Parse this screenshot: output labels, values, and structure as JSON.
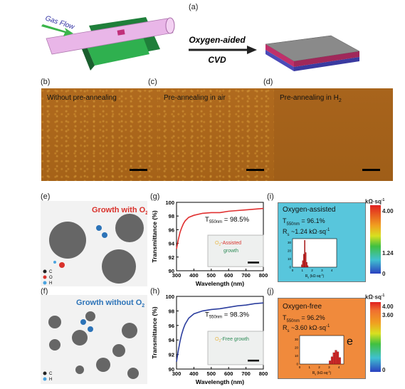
{
  "panels": {
    "a": "(a)",
    "b": "(b)",
    "c": "(c)",
    "d": "(d)",
    "e": "(e)",
    "f": "(f)",
    "g": "(g)",
    "h": "(h)",
    "i": "(i)",
    "j": "(j)"
  },
  "schematic": {
    "gas_flow": "Gas Flow",
    "arrow_top": "Oxygen-aided",
    "arrow_bottom": "CVD"
  },
  "afm": {
    "b_label": "Without pre-annealing",
    "c_label": "Pre-annealing  in air",
    "d_label_main": "Pre-annealing in H",
    "d_label_sub": "2"
  },
  "growth": {
    "e_title_main": "Growth with O",
    "e_title_sub": "2",
    "f_title_main": "Growth without O",
    "f_title_sub": "2",
    "legend_e": [
      "C",
      "O",
      "H"
    ],
    "legend_f": [
      "C",
      "H"
    ],
    "colors": {
      "C": "#222222",
      "O": "#d9312b",
      "H": "#4aa3df"
    }
  },
  "chart_data": [
    {
      "type": "line",
      "panel": "g",
      "xlabel": "Wavelength (nm)",
      "ylabel": "Transmittance (%)",
      "xlim": [
        300,
        800
      ],
      "ylim": [
        90,
        100
      ],
      "xticks": [
        300,
        400,
        500,
        600,
        700,
        800
      ],
      "yticks": [
        90,
        92,
        94,
        96,
        98,
        100
      ],
      "annotation_main": "T",
      "annotation_sub": "550nm",
      "annotation_val": " = 98.5%",
      "inset_text": [
        "O",
        "2",
        "-Assisted",
        "growth"
      ],
      "series": [
        {
          "color": "#e03030",
          "x": [
            300,
            310,
            320,
            330,
            340,
            350,
            370,
            400,
            450,
            500,
            550,
            600,
            650,
            700,
            750,
            800
          ],
          "y": [
            93.2,
            94.5,
            95.6,
            96.3,
            96.9,
            97.3,
            97.8,
            98.1,
            98.4,
            98.5,
            98.5,
            98.7,
            98.8,
            98.9,
            99.0,
            99.1
          ]
        }
      ]
    },
    {
      "type": "line",
      "panel": "h",
      "xlabel": "Wavelength (nm)",
      "ylabel": "Transmittance (%)",
      "xlim": [
        300,
        800
      ],
      "ylim": [
        90,
        100
      ],
      "xticks": [
        300,
        400,
        500,
        600,
        700,
        800
      ],
      "yticks": [
        90,
        92,
        94,
        96,
        98,
        100
      ],
      "annotation_main": "T",
      "annotation_sub": "550nm",
      "annotation_val": " = 98.3%",
      "inset_text": [
        "O",
        "2",
        "-Free growth",
        ""
      ],
      "series": [
        {
          "color": "#2c3e9e",
          "x": [
            300,
            310,
            320,
            330,
            340,
            350,
            370,
            400,
            450,
            500,
            550,
            600,
            650,
            700,
            750,
            800
          ],
          "y": [
            91.0,
            92.5,
            93.8,
            94.8,
            95.6,
            96.2,
            97.0,
            97.6,
            98.0,
            98.2,
            98.3,
            98.5,
            98.7,
            98.8,
            99.0,
            99.1
          ]
        }
      ]
    },
    {
      "type": "bar",
      "panel": "i-inset",
      "xlabel": "R",
      "xlabel_sub": "s",
      "xlabel_unit": " (kΩ·sq",
      "xlabel_sup": "-1",
      "xlabel_end": ")",
      "xticks": [
        0,
        1,
        2,
        3,
        4
      ],
      "yticks": [
        0,
        10,
        20,
        30
      ],
      "xlim": [
        0,
        4.5
      ],
      "ylim": [
        0,
        35
      ],
      "bins": [
        0.9,
        1.0,
        1.1,
        1.2,
        1.3,
        1.4,
        1.5
      ],
      "values": [
        3,
        8,
        16,
        33,
        18,
        6,
        2
      ]
    },
    {
      "type": "bar",
      "panel": "j-inset",
      "xlabel": "R",
      "xlabel_sub": "s",
      "xlabel_unit": " (kΩ·sq",
      "xlabel_sup": "-1",
      "xlabel_end": ")",
      "xticks": [
        0,
        1,
        2,
        3,
        4
      ],
      "yticks": [
        0,
        10,
        20,
        30
      ],
      "xlim": [
        0,
        4.5
      ],
      "ylim": [
        0,
        35
      ],
      "bins": [
        3.0,
        3.2,
        3.4,
        3.6,
        3.8,
        4.0
      ],
      "values": [
        4,
        9,
        14,
        17,
        15,
        8
      ]
    }
  ],
  "maps": {
    "i": {
      "title": "Oxygen-assisted",
      "t_main": "T",
      "t_sub": "550nm",
      "t_val": " = 96.1%",
      "r_main": "R",
      "r_sub": "s",
      "r_val": " ~1.24 kΩ·sq",
      "r_sup": "-1",
      "color": "#58c6dc",
      "cbar_unit": "kΩ·sq",
      "cbar_sup": "-1",
      "cbar_ticks": [
        "4.00",
        "1.24",
        "0"
      ]
    },
    "j": {
      "title": "Oxygen-free",
      "t_main": "T",
      "t_sub": "550nm",
      "t_val": " = 96.2%",
      "r_main": "R",
      "r_sub": "s",
      "r_val": " ~3.60 kΩ·sq",
      "r_sup": "-1",
      "letter": "e",
      "color": "#f08a3c",
      "cbar_unit": "kΩ·sq",
      "cbar_sup": "-1",
      "cbar_ticks": [
        "4.00",
        "3.60",
        "0"
      ]
    }
  }
}
